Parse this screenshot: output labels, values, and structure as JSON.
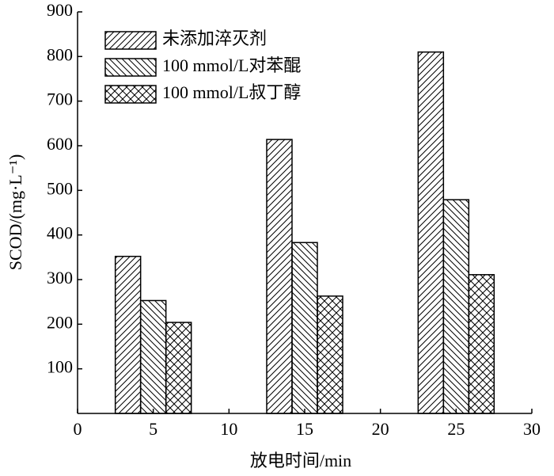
{
  "chart_data": {
    "type": "bar",
    "x_label": "放电时间/min",
    "y_label": "SCOD/(mg·L⁻¹)",
    "x": [
      5,
      15,
      25
    ],
    "series": [
      {
        "name": "未添加淬灭剂",
        "color": "#000000",
        "hatch": "forward",
        "values": [
          352,
          614,
          810
        ]
      },
      {
        "name": "100 mmol/L对苯醌",
        "color": "#000000",
        "hatch": "backward",
        "values": [
          253,
          383,
          479
        ]
      },
      {
        "name": "100 mmol/L叔丁醇",
        "color": "#000000",
        "hatch": "cross",
        "values": [
          204,
          263,
          311
        ]
      }
    ],
    "xlim": [
      0,
      30
    ],
    "xticks": [
      0,
      5,
      10,
      15,
      20,
      25,
      30
    ],
    "ylim": [
      0,
      900
    ],
    "yticks": [
      100,
      200,
      300,
      400,
      500,
      600,
      700,
      800,
      900
    ],
    "legend": "upper-left",
    "grid": false
  }
}
